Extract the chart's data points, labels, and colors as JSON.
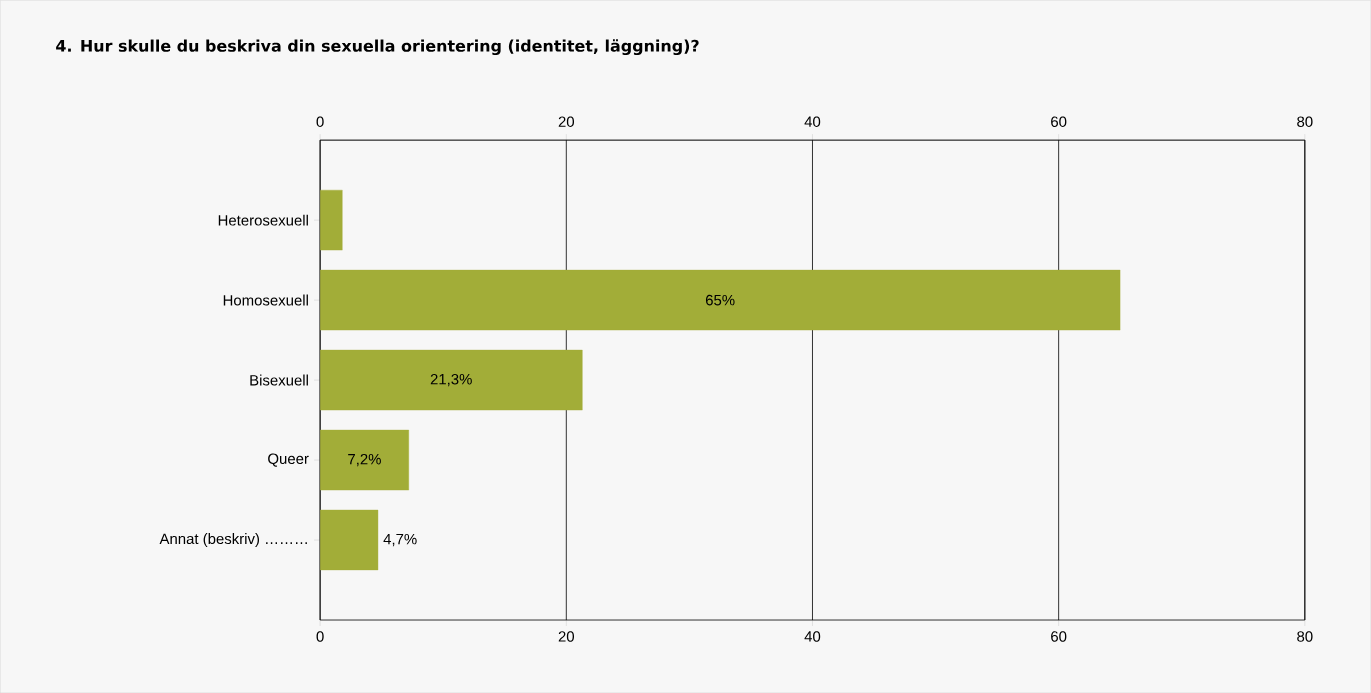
{
  "chart_data": {
    "type": "bar",
    "orientation": "horizontal",
    "title": "4. Hur skulle du beskriva din sexuella orientering (identitet, läggning)?",
    "categories": [
      "Heterosexuell",
      "Homosexuell",
      "Bisexuell",
      "Queer",
      "Annat (beskriv) ………"
    ],
    "values": [
      1.8,
      65,
      21.3,
      7.2,
      4.7
    ],
    "value_labels": [
      null,
      "65%",
      "21,3%",
      "7,2%",
      "4,7%"
    ],
    "color": "#a2ad38",
    "xlim": [
      0,
      80
    ],
    "xticks": [
      0,
      20,
      40,
      60,
      80
    ],
    "x2lim": [
      0,
      80
    ],
    "x2ticks": [
      0,
      20,
      40,
      60,
      80
    ],
    "grid": "x"
  }
}
